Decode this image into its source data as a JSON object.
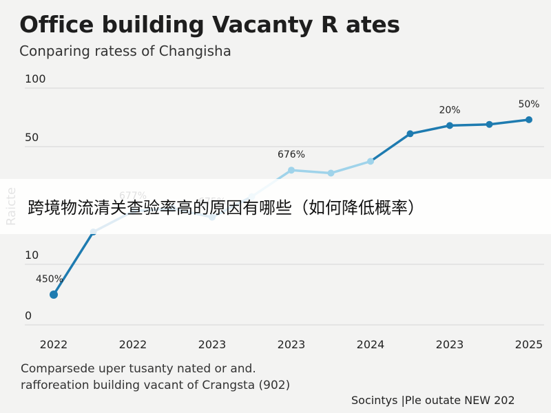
{
  "header": {
    "title": "Office building Vacanty R ates",
    "subtitle": "Conparing ratess of Changisha"
  },
  "banner": {
    "text": "跨境物流清关查验率高的原因有哪些（如何降低概率）"
  },
  "footnote": {
    "line1": "Comparsede uper tusanty nated or and.",
    "line2": "rafforeation building vacant of Crangsta (902)"
  },
  "source": {
    "text": "Socintys |Ple outate NEW 202"
  },
  "chart_data": {
    "type": "line",
    "title": "Office building Vacanty R ates",
    "subtitle": "Conparing ratess of Changisha",
    "ylabel": "Raicte",
    "xlabel": "",
    "y_ticks": [
      0,
      10,
      50,
      100
    ],
    "x_tick_labels": [
      "2022",
      "2022",
      "2023",
      "2023",
      "2024",
      "2023",
      "2025"
    ],
    "grid": true,
    "series_color": "#1e7bb0",
    "series_color_light": "#9fd3ea",
    "series": [
      {
        "values": [
          {
            "x": 0,
            "y": 5
          },
          {
            "x": 0.5,
            "y": 21
          },
          {
            "x": 1,
            "y": 28
          },
          {
            "x": 1.5,
            "y": 29
          },
          {
            "x": 2,
            "y": 26
          },
          {
            "x": 2.5,
            "y": 33
          },
          {
            "x": 3,
            "y": 42
          },
          {
            "x": 3.5,
            "y": 41
          },
          {
            "x": 4,
            "y": 45
          },
          {
            "x": 4.5,
            "y": 61
          },
          {
            "x": 5,
            "y": 68
          },
          {
            "x": 5.5,
            "y": 69
          },
          {
            "x": 6,
            "y": 73
          }
        ]
      }
    ],
    "data_labels": [
      {
        "x": 0,
        "y": 5,
        "text": "450%"
      },
      {
        "x": 1,
        "y": 28,
        "text": "677%"
      },
      {
        "x": 2,
        "y": 26,
        "text": "675%"
      },
      {
        "x": 3,
        "y": 42,
        "text": "676%"
      },
      {
        "x": 5,
        "y": 68,
        "text": "20%"
      },
      {
        "x": 6,
        "y": 73,
        "text": "50%"
      }
    ]
  }
}
